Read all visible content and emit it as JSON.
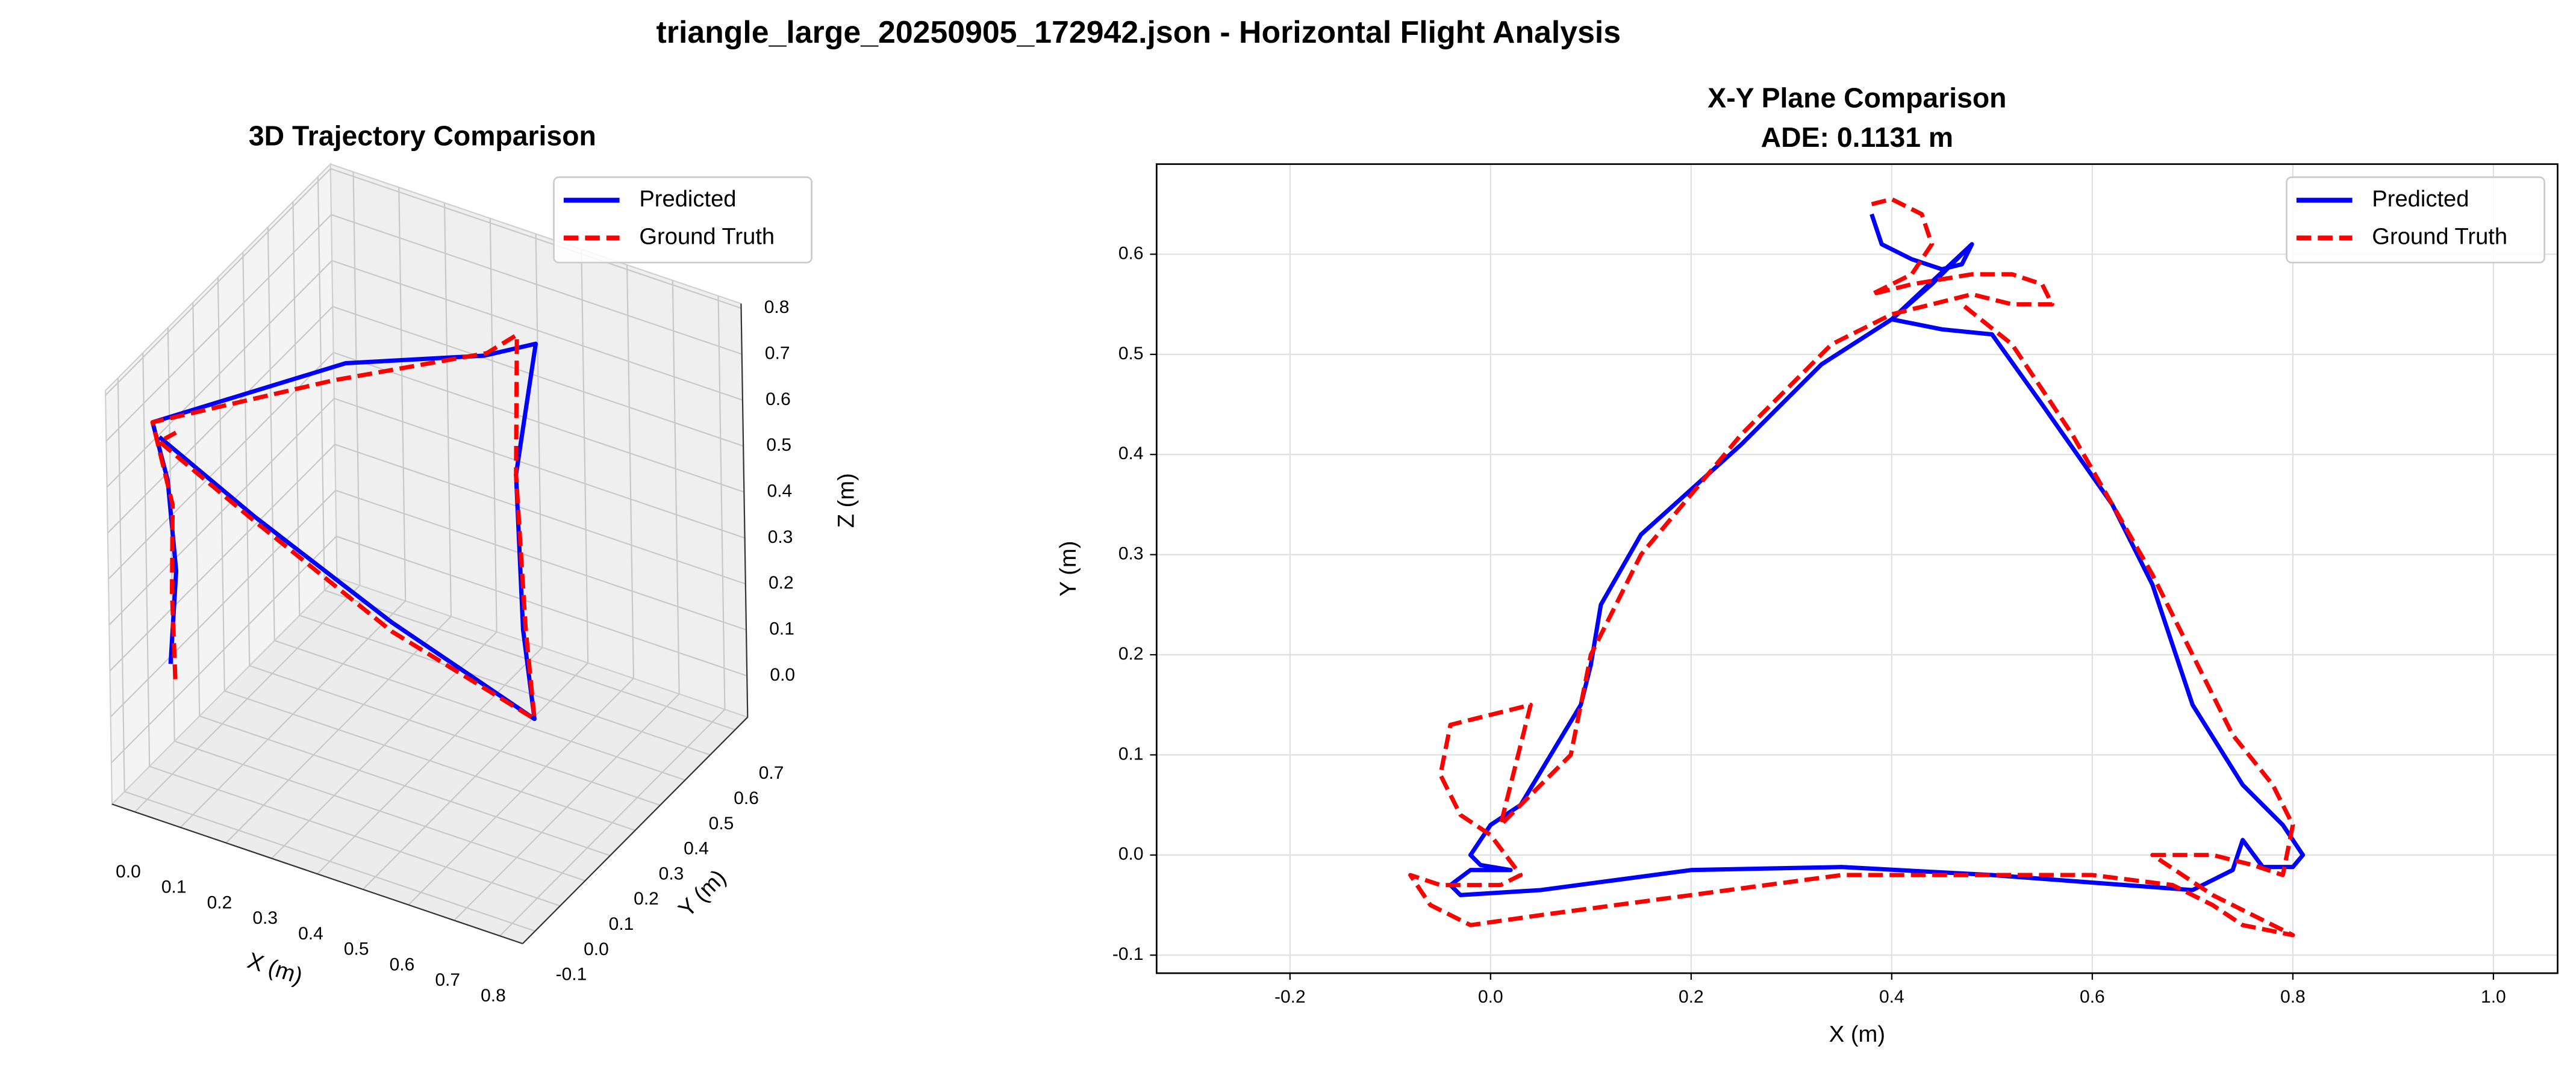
{
  "title": "triangle_large_20250905_172942.json - Horizontal Flight Analysis",
  "chart_data": [
    {
      "type": "line3d",
      "title": "3D Trajectory Comparison",
      "xlabel": "X (m)",
      "ylabel": "Y (m)",
      "zlabel": "Z (m)",
      "xlim": [
        -0.05,
        0.85
      ],
      "ylim": [
        -0.15,
        0.75
      ],
      "zlim": [
        -0.09,
        0.81
      ],
      "xticks": [
        {
          "value": 0,
          "label": "0.0"
        },
        0.1,
        0.2,
        0.3,
        0.4,
        0.5,
        0.6,
        0.7,
        0.8
      ],
      "yticks": [
        -0.1,
        {
          "value": 0,
          "label": "0.0"
        },
        0.1,
        0.2,
        0.3,
        0.4,
        0.5,
        0.6,
        0.7
      ],
      "zticks": [
        {
          "value": 0,
          "label": "0.0"
        },
        0.1,
        0.2,
        0.3,
        0.4,
        0.5,
        0.6,
        0.7,
        0.8
      ],
      "grid": true,
      "legend": "upper right",
      "series": [
        {
          "name": "Predicted",
          "color": "#0000ff",
          "linestyle": "solid",
          "x": [
            0.0,
            0.01,
            0.0,
            -0.02,
            0.2,
            0.4,
            0.48,
            0.6,
            0.75,
            0.8,
            0.5,
            0.2,
            0.0
          ],
          "y": [
            0.0,
            0.01,
            0.0,
            -0.02,
            0.35,
            0.54,
            0.6,
            0.3,
            0.05,
            0.0,
            -0.02,
            -0.02,
            -0.03
          ],
          "z": [
            0.15,
            0.35,
            0.55,
            0.68,
            0.68,
            0.66,
            0.68,
            0.6,
            0.45,
            0.3,
            0.42,
            0.55,
            0.66
          ]
        },
        {
          "name": "Ground Truth",
          "color": "#ff0000",
          "linestyle": "dashed",
          "x": [
            0.01,
            0.0,
            0.01,
            -0.02,
            0.2,
            0.4,
            0.45,
            0.6,
            0.75,
            0.8,
            0.5,
            0.2,
            0.0,
            0.02
          ],
          "y": [
            0.0,
            0.01,
            0.0,
            -0.02,
            0.3,
            0.55,
            0.58,
            0.3,
            0.06,
            0.0,
            -0.02,
            -0.03,
            -0.03,
            0.0
          ],
          "z": [
            0.12,
            0.3,
            0.5,
            0.68,
            0.67,
            0.66,
            0.7,
            0.6,
            0.45,
            0.3,
            0.4,
            0.55,
            0.65,
            0.66
          ]
        }
      ]
    },
    {
      "type": "line",
      "title": "X-Y Plane Comparison",
      "subtitle": "ADE: 0.1131 m",
      "xlabel": "X (m)",
      "ylabel": "Y (m)",
      "xlim": [
        -0.333,
        1.064
      ],
      "ylim": [
        -0.118,
        0.69
      ],
      "xticks": [
        -0.2,
        {
          "value": 0,
          "label": "0.0"
        },
        0.2,
        0.4,
        0.6,
        0.8,
        {
          "value": 1,
          "label": "1.0"
        }
      ],
      "yticks": [
        -0.1,
        {
          "value": 0,
          "label": "0.0"
        },
        0.1,
        0.2,
        0.3,
        0.4,
        0.5,
        0.6
      ],
      "grid": true,
      "legend": "upper right",
      "series": [
        {
          "name": "Predicted",
          "color": "#0000ff",
          "linestyle": "solid",
          "x": [
            0.38,
            0.39,
            0.42,
            0.45,
            0.47,
            0.48,
            0.44,
            0.4,
            0.45,
            0.5,
            0.55,
            0.62,
            0.66,
            0.7,
            0.75,
            0.79,
            0.81,
            0.8,
            0.77,
            0.75,
            0.74,
            0.7,
            0.5,
            0.35,
            0.2,
            0.05,
            -0.03,
            -0.04,
            -0.02,
            0.02,
            -0.01,
            -0.02,
            0.0,
            0.03,
            0.06,
            0.09,
            0.1,
            0.11,
            0.15,
            0.25,
            0.33,
            0.4,
            0.48
          ],
          "y": [
            0.64,
            0.61,
            0.595,
            0.585,
            0.59,
            0.61,
            0.57,
            0.535,
            0.525,
            0.52,
            0.45,
            0.35,
            0.27,
            0.15,
            0.07,
            0.03,
            0.0,
            -0.012,
            -0.012,
            0.015,
            -0.015,
            -0.035,
            -0.02,
            -0.012,
            -0.015,
            -0.035,
            -0.04,
            -0.03,
            -0.015,
            -0.015,
            -0.01,
            0.0,
            0.03,
            0.05,
            0.1,
            0.15,
            0.19,
            0.25,
            0.32,
            0.41,
            0.49,
            0.535,
            0.61
          ]
        },
        {
          "name": "Ground Truth",
          "color": "#ff0000",
          "linestyle": "dashed",
          "x": [
            0.38,
            0.4,
            0.43,
            0.44,
            0.42,
            0.38,
            0.42,
            0.48,
            0.52,
            0.55,
            0.56,
            0.52,
            0.48,
            0.44,
            0.4,
            0.34,
            0.25,
            0.15,
            0.1,
            0.08,
            0.04,
            0.01,
            0.04,
            -0.04,
            -0.05,
            -0.03,
            0.0,
            0.03,
            0.01,
            -0.05,
            -0.08,
            -0.06,
            -0.02,
            0.05,
            0.2,
            0.35,
            0.5,
            0.6,
            0.68,
            0.72,
            0.75,
            0.8,
            0.78,
            0.72,
            0.66,
            0.72,
            0.76,
            0.79,
            0.8,
            0.78,
            0.74,
            0.7,
            0.66,
            0.62,
            0.58,
            0.52,
            0.47
          ],
          "y": [
            0.65,
            0.655,
            0.64,
            0.61,
            0.58,
            0.56,
            0.57,
            0.58,
            0.58,
            0.57,
            0.55,
            0.55,
            0.56,
            0.55,
            0.54,
            0.51,
            0.42,
            0.3,
            0.2,
            0.1,
            0.06,
            0.03,
            0.15,
            0.13,
            0.08,
            0.04,
            0.02,
            -0.02,
            -0.03,
            -0.03,
            -0.02,
            -0.05,
            -0.07,
            -0.06,
            -0.04,
            -0.02,
            -0.02,
            -0.02,
            -0.03,
            -0.05,
            -0.07,
            -0.08,
            -0.07,
            -0.04,
            0.0,
            0.0,
            -0.01,
            -0.02,
            0.03,
            0.07,
            0.12,
            0.2,
            0.28,
            0.35,
            0.42,
            0.51,
            0.55
          ]
        }
      ]
    }
  ]
}
